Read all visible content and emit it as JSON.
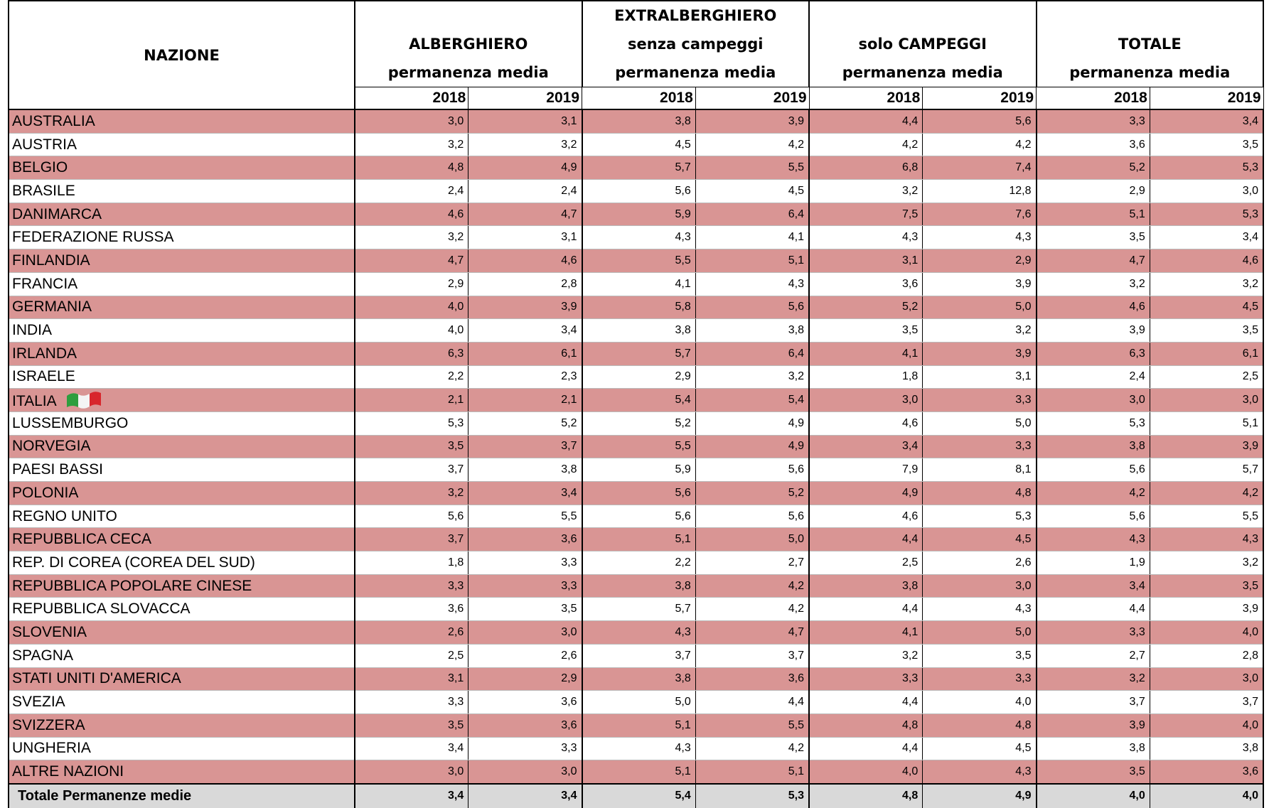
{
  "header": {
    "nazione": "NAZIONE",
    "groups": [
      {
        "lines": [
          "ALBERGHIERO",
          "permanenza media"
        ]
      },
      {
        "lines": [
          "EXTRALBERGHIERO",
          "senza campeggi",
          "permanenza media"
        ]
      },
      {
        "lines": [
          "solo CAMPEGGI",
          "permanenza media"
        ]
      },
      {
        "lines": [
          "TOTALE",
          "permanenza media"
        ]
      }
    ],
    "years": [
      "2018",
      "2019"
    ]
  },
  "rows": [
    {
      "name": "AUSTRALIA",
      "values": [
        "3,0",
        "3,1",
        "3,8",
        "3,9",
        "4,4",
        "5,6",
        "3,3",
        "3,4"
      ]
    },
    {
      "name": "AUSTRIA",
      "values": [
        "3,2",
        "3,2",
        "4,5",
        "4,2",
        "4,2",
        "4,2",
        "3,6",
        "3,5"
      ]
    },
    {
      "name": "BELGIO",
      "values": [
        "4,8",
        "4,9",
        "5,7",
        "5,5",
        "6,8",
        "7,4",
        "5,2",
        "5,3"
      ]
    },
    {
      "name": "BRASILE",
      "values": [
        "2,4",
        "2,4",
        "5,6",
        "4,5",
        "3,2",
        "12,8",
        "2,9",
        "3,0"
      ]
    },
    {
      "name": "DANIMARCA",
      "values": [
        "4,6",
        "4,7",
        "5,9",
        "6,4",
        "7,5",
        "7,6",
        "5,1",
        "5,3"
      ]
    },
    {
      "name": "FEDERAZIONE RUSSA",
      "values": [
        "3,2",
        "3,1",
        "4,3",
        "4,1",
        "4,3",
        "4,3",
        "3,5",
        "3,4"
      ]
    },
    {
      "name": "FINLANDIA",
      "values": [
        "4,7",
        "4,6",
        "5,5",
        "5,1",
        "3,1",
        "2,9",
        "4,7",
        "4,6"
      ]
    },
    {
      "name": "FRANCIA",
      "values": [
        "2,9",
        "2,8",
        "4,1",
        "4,3",
        "3,6",
        "3,9",
        "3,2",
        "3,2"
      ]
    },
    {
      "name": "GERMANIA",
      "values": [
        "4,0",
        "3,9",
        "5,8",
        "5,6",
        "5,2",
        "5,0",
        "4,6",
        "4,5"
      ]
    },
    {
      "name": "INDIA",
      "values": [
        "4,0",
        "3,4",
        "3,8",
        "3,8",
        "3,5",
        "3,2",
        "3,9",
        "3,5"
      ]
    },
    {
      "name": "IRLANDA",
      "values": [
        "6,3",
        "6,1",
        "5,7",
        "6,4",
        "4,1",
        "3,9",
        "6,3",
        "6,1"
      ]
    },
    {
      "name": "ISRAELE",
      "values": [
        "2,2",
        "2,3",
        "2,9",
        "3,2",
        "1,8",
        "3,1",
        "2,4",
        "2,5"
      ]
    },
    {
      "name": "ITALIA",
      "values": [
        "2,1",
        "2,1",
        "5,4",
        "5,4",
        "3,0",
        "3,3",
        "3,0",
        "3,0"
      ]
    },
    {
      "name": "LUSSEMBURGO",
      "values": [
        "5,3",
        "5,2",
        "5,2",
        "4,9",
        "4,6",
        "5,0",
        "5,3",
        "5,1"
      ]
    },
    {
      "name": "NORVEGIA",
      "values": [
        "3,5",
        "3,7",
        "5,5",
        "4,9",
        "3,4",
        "3,3",
        "3,8",
        "3,9"
      ]
    },
    {
      "name": "PAESI BASSI",
      "values": [
        "3,7",
        "3,8",
        "5,9",
        "5,6",
        "7,9",
        "8,1",
        "5,6",
        "5,7"
      ]
    },
    {
      "name": "POLONIA",
      "values": [
        "3,2",
        "3,4",
        "5,6",
        "5,2",
        "4,9",
        "4,8",
        "4,2",
        "4,2"
      ]
    },
    {
      "name": "REGNO UNITO",
      "values": [
        "5,6",
        "5,5",
        "5,6",
        "5,6",
        "4,6",
        "5,3",
        "5,6",
        "5,5"
      ]
    },
    {
      "name": "REPUBBLICA CECA",
      "values": [
        "3,7",
        "3,6",
        "5,1",
        "5,0",
        "4,4",
        "4,5",
        "4,3",
        "4,3"
      ]
    },
    {
      "name": "REP. DI COREA (COREA DEL SUD)",
      "values": [
        "1,8",
        "3,3",
        "2,2",
        "2,7",
        "2,5",
        "2,6",
        "1,9",
        "3,2"
      ]
    },
    {
      "name": "REPUBBLICA POPOLARE CINESE",
      "values": [
        "3,3",
        "3,3",
        "3,8",
        "4,2",
        "3,8",
        "3,0",
        "3,4",
        "3,5"
      ]
    },
    {
      "name": "REPUBBLICA SLOVACCA",
      "values": [
        "3,6",
        "3,5",
        "5,7",
        "4,2",
        "4,4",
        "4,3",
        "4,4",
        "3,9"
      ]
    },
    {
      "name": "SLOVENIA",
      "values": [
        "2,6",
        "3,0",
        "4,3",
        "4,7",
        "4,1",
        "5,0",
        "3,3",
        "4,0"
      ]
    },
    {
      "name": "SPAGNA",
      "values": [
        "2,5",
        "2,6",
        "3,7",
        "3,7",
        "3,2",
        "3,5",
        "2,7",
        "2,8"
      ]
    },
    {
      "name": "STATI UNITI D'AMERICA",
      "values": [
        "3,1",
        "2,9",
        "3,8",
        "3,6",
        "3,3",
        "3,3",
        "3,2",
        "3,0"
      ]
    },
    {
      "name": "SVEZIA",
      "values": [
        "3,3",
        "3,6",
        "5,0",
        "4,4",
        "4,4",
        "4,0",
        "3,7",
        "3,7"
      ]
    },
    {
      "name": "SVIZZERA",
      "values": [
        "3,5",
        "3,6",
        "5,1",
        "5,5",
        "4,8",
        "4,8",
        "3,9",
        "4,0"
      ]
    },
    {
      "name": "UNGHERIA",
      "values": [
        "3,4",
        "3,3",
        "4,3",
        "4,2",
        "4,4",
        "4,5",
        "3,8",
        "3,8"
      ]
    },
    {
      "name": "ALTRE NAZIONI",
      "values": [
        "3,0",
        "3,0",
        "5,1",
        "5,1",
        "4,0",
        "4,3",
        "3,5",
        "3,6"
      ]
    }
  ],
  "total": {
    "name": "Totale Permanenze medie",
    "values": [
      "3,4",
      "3,4",
      "5,4",
      "5,3",
      "4,8",
      "4,9",
      "4,0",
      "4,0"
    ]
  }
}
